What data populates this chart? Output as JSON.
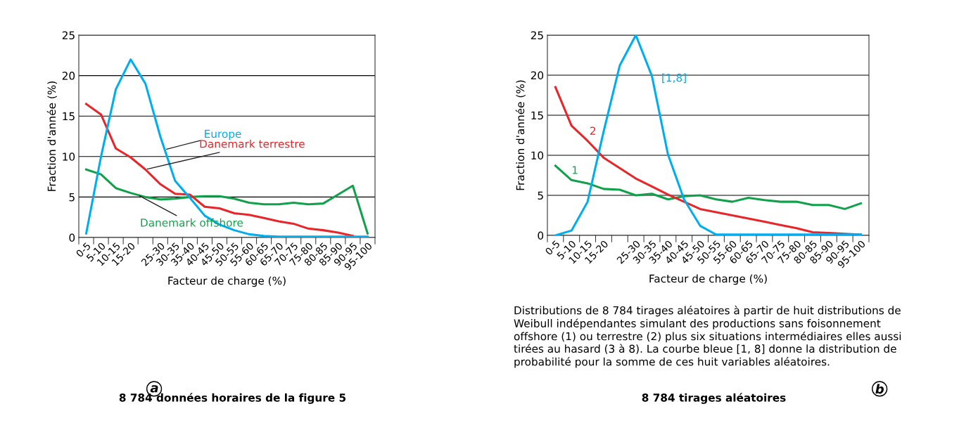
{
  "chart_data": [
    {
      "type": "line",
      "title": "8 784 données horaires de la figure 5",
      "xlabel": "Facteur de charge (%)",
      "ylabel": "Fraction d'année (%)",
      "categories": [
        "0-5",
        "5-10",
        "10-15",
        "15-20",
        null,
        "25-30",
        "30-35",
        "35-40",
        "40-45",
        "45-50",
        "50-55",
        "55-60",
        "60-65",
        "65-70",
        "70-75",
        "75-80",
        "80-85",
        "85-90",
        "90-95",
        "95-100"
      ],
      "series": [
        {
          "name": "Europe",
          "color": "#00aeef",
          "values": [
            0.5,
            10,
            18.3,
            22,
            19,
            12.5,
            7,
            4.9,
            2.7,
            1.6,
            0.9,
            0.4,
            0.2,
            0.1,
            0.1,
            0.1,
            0.1,
            0.1,
            0.1,
            0.1
          ]
        },
        {
          "name": "Danemark terrestre",
          "color": "#e8262a",
          "values": [
            16.5,
            15.2,
            11,
            9.9,
            8.4,
            6.6,
            5.4,
            5.3,
            3.8,
            3.6,
            3,
            2.8,
            2.4,
            2,
            1.7,
            1.1,
            0.9,
            0.6,
            0.2,
            null
          ]
        },
        {
          "name": "Danemark offshore",
          "color": "#12a14b",
          "values": [
            8.4,
            7.8,
            6.1,
            5.5,
            5,
            4.7,
            4.8,
            5,
            5.1,
            5.1,
            4.8,
            4.3,
            4.1,
            4.1,
            4.3,
            4.1,
            4.2,
            5.3,
            6.4,
            0.5
          ]
        }
      ],
      "ylim": [
        0,
        25
      ],
      "yticks": [
        0,
        5,
        10,
        15,
        20,
        25
      ],
      "grid": "y",
      "legend": false,
      "line_style": "solid"
    },
    {
      "type": "line",
      "title": "8 784 tirages aléatoires",
      "xlabel": "Facteur de charge (%)",
      "ylabel": "Fraction d'année (%)",
      "categories": [
        "0-5",
        "5-10",
        "10-15",
        "15-20",
        null,
        "25-30",
        "30-35",
        "35-40",
        "40-45",
        "45-50",
        "50-55",
        "55-60",
        "60-65",
        "65-70",
        "70-75",
        "75-80",
        "80-85",
        "85-90",
        "90-95",
        "95-100"
      ],
      "series": [
        {
          "name": "[1,8]",
          "color": "#00aeef",
          "values": [
            0,
            0.6,
            4.2,
            13,
            21.2,
            25,
            19.9,
            10.1,
            4.5,
            1.2,
            0.1,
            0.1,
            0.1,
            0.1,
            0.1,
            0.1,
            0.1,
            0.1,
            0.1,
            0.1
          ]
        },
        {
          "name": "2",
          "color": "#e8262a",
          "values": [
            18.5,
            13.7,
            11.8,
            9.7,
            8.4,
            7.1,
            6.1,
            5.1,
            4.2,
            3.3,
            2.9,
            2.5,
            2.1,
            1.7,
            1.3,
            0.9,
            0.4,
            0.3,
            0.2,
            0.1
          ]
        },
        {
          "name": "1",
          "color": "#12a14b",
          "values": [
            8.7,
            6.9,
            6.5,
            5.8,
            5.7,
            5,
            5.2,
            4.5,
            4.9,
            5,
            4.5,
            4.2,
            4.7,
            4.4,
            4.2,
            4.2,
            3.8,
            3.8,
            3.3,
            4
          ]
        }
      ],
      "ylim": [
        0,
        25
      ],
      "yticks": [
        0,
        5,
        10,
        15,
        20,
        25
      ],
      "grid": "y",
      "legend": false,
      "line_style": "solid",
      "annotations": [
        "Distributions de 8 784 tirages aléatoires à partir de huit distributions de Weibull indépendantes simulant des productions sans foisonnement offshore (1) ou terrestre (2) plus six situations intermédiaires elles aussi tirées au hasard (3 à 8). La courbe bleue [1, 8] donne la distribution de probabilité pour la somme de ces huit variables aléatoires."
      ]
    }
  ]
}
